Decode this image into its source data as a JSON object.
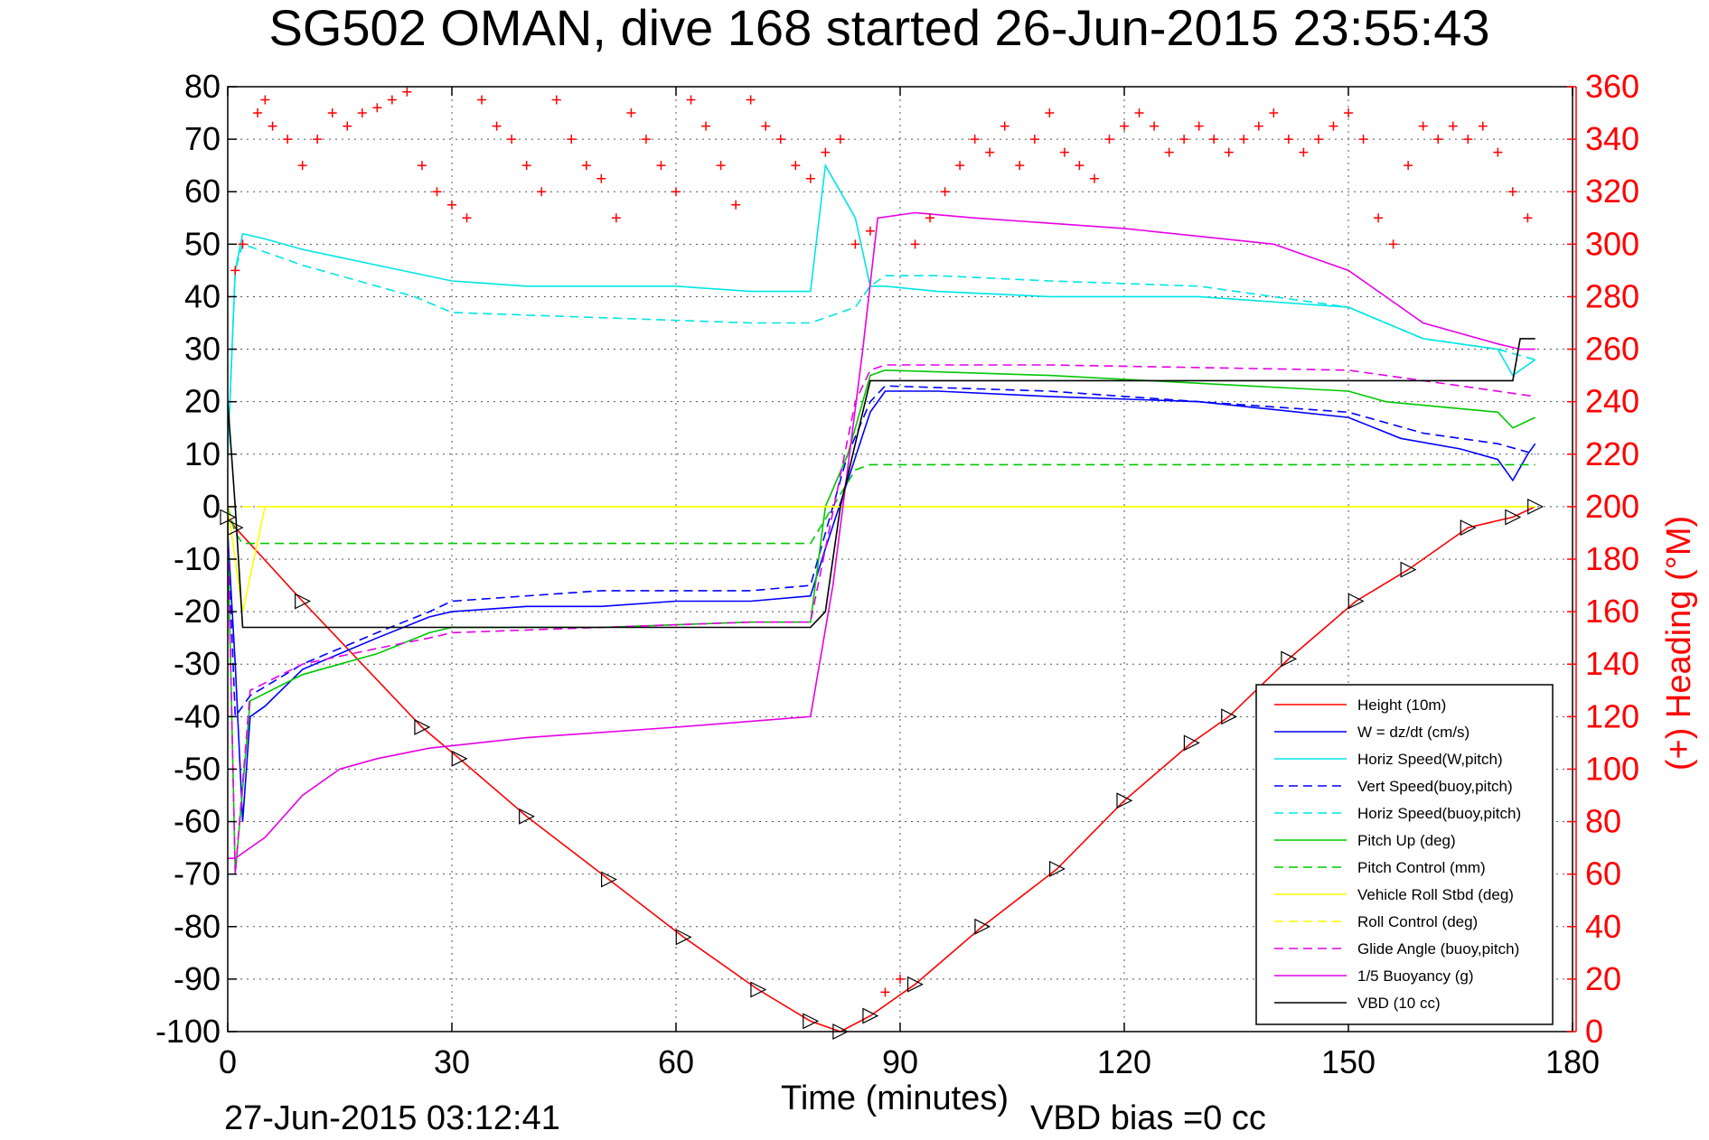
{
  "chart_data": {
    "type": "line",
    "title": "SG502 OMAN, dive 168 started 26-Jun-2015 23:55:43",
    "xlabel": "Time (minutes)",
    "ylabel": "",
    "y2label": "(+) Heading (°M)",
    "xlim": [
      0,
      180
    ],
    "ylim": [
      -100,
      80
    ],
    "y2lim": [
      0,
      360
    ],
    "xticks": [
      0,
      30,
      60,
      90,
      120,
      150,
      180
    ],
    "yticks": [
      -100,
      -90,
      -80,
      -70,
      -60,
      -50,
      -40,
      -30,
      -20,
      -10,
      0,
      10,
      20,
      30,
      40,
      50,
      60,
      70,
      80
    ],
    "y2ticks": [
      0,
      20,
      40,
      60,
      80,
      100,
      120,
      140,
      160,
      180,
      200,
      220,
      240,
      260,
      280,
      300,
      320,
      340,
      360
    ],
    "grid": true,
    "legend_position": "bottom-right",
    "footer_left": "27-Jun-2015 03:12:41",
    "footer_right": "VBD bias =0 cc",
    "series": [
      {
        "name": "Height (10m)",
        "color": "#ff0000",
        "style": "solid",
        "x": [
          0,
          1,
          10,
          26,
          31,
          40,
          51,
          61,
          71,
          78,
          82,
          86,
          92,
          101,
          111,
          120,
          129,
          134,
          142,
          151,
          158,
          166,
          172,
          175
        ],
        "y": [
          -2,
          -4,
          -18,
          -42,
          -48,
          -59,
          -71,
          -82,
          -92,
          -98,
          -100,
          -97,
          -91,
          -80,
          -69,
          -56,
          -45,
          -40,
          -29,
          -18,
          -12,
          -4,
          -2,
          0
        ]
      },
      {
        "name": "W = dz/dt (cm/s)",
        "color": "#0000ff",
        "style": "solid",
        "x": [
          0,
          1,
          2,
          3,
          5,
          10,
          20,
          27,
          30,
          40,
          50,
          60,
          70,
          78,
          80,
          83,
          86,
          88,
          95,
          110,
          130,
          150,
          157,
          165,
          170,
          172,
          174,
          175
        ],
        "y": [
          -5,
          -30,
          -60,
          -40,
          -38,
          -31,
          -25,
          -21,
          -20,
          -19,
          -19,
          -18,
          -18,
          -17,
          -8,
          5,
          18,
          22,
          22,
          21,
          20,
          17,
          13,
          11,
          9,
          5,
          10,
          12
        ]
      },
      {
        "name": "Horiz Speed(W,pitch)",
        "color": "#00e5e5",
        "style": "solid",
        "x": [
          0,
          1,
          2,
          5,
          10,
          20,
          30,
          40,
          50,
          60,
          70,
          78,
          80,
          82,
          84,
          86,
          88,
          95,
          110,
          130,
          150,
          155,
          160,
          170,
          172,
          175
        ],
        "y": [
          10,
          45,
          52,
          51,
          49,
          46,
          43,
          42,
          42,
          42,
          41,
          41,
          65,
          60,
          55,
          42,
          42,
          41,
          40,
          40,
          38,
          35,
          32,
          30,
          25,
          28
        ]
      },
      {
        "name": "Vert Speed(buoy,pitch)",
        "color": "#0000ff",
        "style": "dashed",
        "x": [
          0,
          1,
          3,
          10,
          20,
          27,
          30,
          50,
          70,
          78,
          83,
          86,
          88,
          110,
          150,
          160,
          170,
          175
        ],
        "y": [
          -5,
          -40,
          -36,
          -30,
          -24,
          -20,
          -18,
          -16,
          -16,
          -15,
          10,
          20,
          23,
          22,
          18,
          14,
          12,
          10
        ]
      },
      {
        "name": "Horiz Speed(buoy,pitch)",
        "color": "#00e5e5",
        "style": "dashed",
        "x": [
          0,
          1,
          2,
          10,
          20,
          25,
          30,
          50,
          70,
          78,
          84,
          86,
          88,
          95,
          110,
          130,
          150,
          160,
          170,
          175
        ],
        "y": [
          10,
          45,
          50,
          46,
          42,
          40,
          37,
          36,
          35,
          35,
          38,
          42,
          44,
          44,
          43,
          42,
          38,
          32,
          30,
          28
        ]
      },
      {
        "name": "Pitch Up (deg)",
        "color": "#00c800",
        "style": "solid",
        "x": [
          0,
          1,
          3,
          10,
          20,
          27,
          30,
          50,
          70,
          78,
          80,
          83,
          86,
          88,
          110,
          150,
          155,
          170,
          172,
          175
        ],
        "y": [
          -5,
          -70,
          -37,
          -32,
          -28,
          -24,
          -23,
          -23,
          -22,
          -22,
          0,
          10,
          25,
          26,
          25,
          22,
          20,
          18,
          15,
          17
        ]
      },
      {
        "name": "Pitch Control (mm)",
        "color": "#00c800",
        "style": "dashed",
        "x": [
          0,
          1,
          2,
          26,
          78,
          84,
          86,
          172,
          175
        ],
        "y": [
          0,
          -5,
          -7,
          -7,
          -7,
          7,
          8,
          8,
          8
        ]
      },
      {
        "name": "Vehicle Roll Stbd (deg)",
        "color": "#ffff00",
        "style": "solid",
        "x": [
          0,
          2,
          5,
          10,
          20,
          30,
          50,
          70,
          78,
          80,
          86,
          90,
          110,
          130,
          150,
          170,
          175
        ],
        "y": [
          0,
          -20,
          0,
          0,
          0,
          0,
          0,
          0,
          0,
          0,
          0,
          0,
          0,
          0,
          0,
          0,
          0
        ]
      },
      {
        "name": "Roll Control (deg)",
        "color": "#ffff00",
        "style": "dashed",
        "x": [
          0,
          175
        ],
        "y": [
          0,
          0
        ]
      },
      {
        "name": "Glide Angle (buoy,pitch)",
        "color": "#e600e6",
        "style": "dashed",
        "x": [
          0,
          1,
          3,
          10,
          20,
          27,
          30,
          50,
          70,
          78,
          84,
          86,
          88,
          110,
          150,
          165,
          175
        ],
        "y": [
          -5,
          -70,
          -35,
          -30,
          -27,
          -25,
          -24,
          -23,
          -22,
          -22,
          20,
          26,
          27,
          27,
          26,
          23,
          21
        ]
      },
      {
        "name": "1/5 Buoyancy (g)",
        "color": "#e600e6",
        "style": "solid",
        "x": [
          0,
          1,
          2,
          5,
          10,
          15,
          20,
          27,
          40,
          60,
          78,
          81,
          85,
          87,
          92,
          100,
          120,
          140,
          150,
          155,
          160,
          170,
          173,
          175
        ],
        "y": [
          -67,
          -67,
          -66,
          -63,
          -55,
          -50,
          -48,
          -46,
          -44,
          -42,
          -40,
          -15,
          30,
          55,
          56,
          55,
          53,
          50,
          45,
          40,
          35,
          31,
          30,
          30
        ]
      },
      {
        "name": "VBD (10 cc)",
        "color": "#000000",
        "style": "solid",
        "x": [
          0,
          1,
          2,
          78,
          80,
          82,
          86,
          88,
          172,
          173,
          175
        ],
        "y": [
          20,
          0,
          -23,
          -23,
          -20,
          0,
          24,
          24,
          24,
          32,
          32
        ]
      }
    ],
    "heading_series": {
      "name": "(+) Heading (°M)",
      "color": "#ff0000",
      "marker": "+",
      "x": [
        1,
        2,
        4,
        5,
        6,
        8,
        10,
        12,
        14,
        16,
        18,
        20,
        22,
        24,
        26,
        28,
        30,
        32,
        34,
        36,
        38,
        40,
        42,
        44,
        46,
        48,
        50,
        52,
        54,
        56,
        58,
        60,
        62,
        64,
        66,
        68,
        70,
        72,
        74,
        76,
        78,
        80,
        82,
        84,
        86,
        88,
        90,
        92,
        94,
        96,
        98,
        100,
        102,
        104,
        106,
        108,
        110,
        112,
        114,
        116,
        118,
        120,
        122,
        124,
        126,
        128,
        130,
        132,
        134,
        136,
        138,
        140,
        142,
        144,
        146,
        148,
        150,
        152,
        154,
        156,
        158,
        160,
        162,
        164,
        166,
        168,
        170,
        172,
        174
      ],
      "y": [
        290,
        300,
        350,
        355,
        345,
        340,
        330,
        340,
        350,
        345,
        350,
        352,
        355,
        358,
        330,
        320,
        315,
        310,
        355,
        345,
        340,
        330,
        320,
        355,
        340,
        330,
        325,
        310,
        350,
        340,
        330,
        320,
        355,
        345,
        330,
        315,
        355,
        345,
        340,
        330,
        325,
        335,
        340,
        300,
        305,
        15,
        20,
        300,
        310,
        320,
        330,
        340,
        335,
        345,
        330,
        340,
        350,
        335,
        330,
        325,
        340,
        345,
        350,
        345,
        335,
        340,
        345,
        340,
        335,
        340,
        345,
        350,
        340,
        335,
        340,
        345,
        350,
        340,
        310,
        300,
        330,
        345,
        340,
        345,
        340,
        345,
        335,
        320,
        310
      ]
    }
  }
}
